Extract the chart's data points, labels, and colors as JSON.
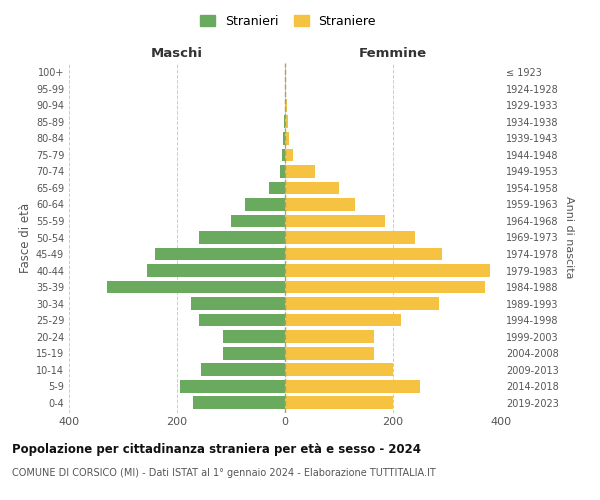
{
  "age_groups": [
    "0-4",
    "5-9",
    "10-14",
    "15-19",
    "20-24",
    "25-29",
    "30-34",
    "35-39",
    "40-44",
    "45-49",
    "50-54",
    "55-59",
    "60-64",
    "65-69",
    "70-74",
    "75-79",
    "80-84",
    "85-89",
    "90-94",
    "95-99",
    "100+"
  ],
  "birth_years": [
    "2019-2023",
    "2014-2018",
    "2009-2013",
    "2004-2008",
    "1999-2003",
    "1994-1998",
    "1989-1993",
    "1984-1988",
    "1979-1983",
    "1974-1978",
    "1969-1973",
    "1964-1968",
    "1959-1963",
    "1954-1958",
    "1949-1953",
    "1944-1948",
    "1939-1943",
    "1934-1938",
    "1929-1933",
    "1924-1928",
    "≤ 1923"
  ],
  "maschi": [
    170,
    195,
    155,
    115,
    115,
    160,
    175,
    330,
    255,
    240,
    160,
    100,
    75,
    30,
    10,
    5,
    3,
    2,
    0,
    0,
    0
  ],
  "femmine": [
    200,
    250,
    200,
    165,
    165,
    215,
    285,
    370,
    380,
    290,
    240,
    185,
    130,
    100,
    55,
    15,
    7,
    5,
    3,
    1,
    2
  ],
  "maschi_color": "#6aaa5e",
  "femmine_color": "#f5c242",
  "background_color": "#ffffff",
  "grid_color": "#cccccc",
  "title_main": "Popolazione per cittadinanza straniera per età e sesso - 2024",
  "title_sub": "COMUNE DI CORSICO (MI) - Dati ISTAT al 1° gennaio 2024 - Elaborazione TUTTITALIA.IT",
  "legend_maschi": "Stranieri",
  "legend_femmine": "Straniere",
  "xlabel_left": "Maschi",
  "xlabel_right": "Femmine",
  "ylabel_left": "Fasce di età",
  "ylabel_right": "Anni di nascita",
  "xlim": 400,
  "xticks": [
    -400,
    -200,
    0,
    200,
    400
  ],
  "xticklabels": [
    "400",
    "200",
    "0",
    "200",
    "400"
  ]
}
